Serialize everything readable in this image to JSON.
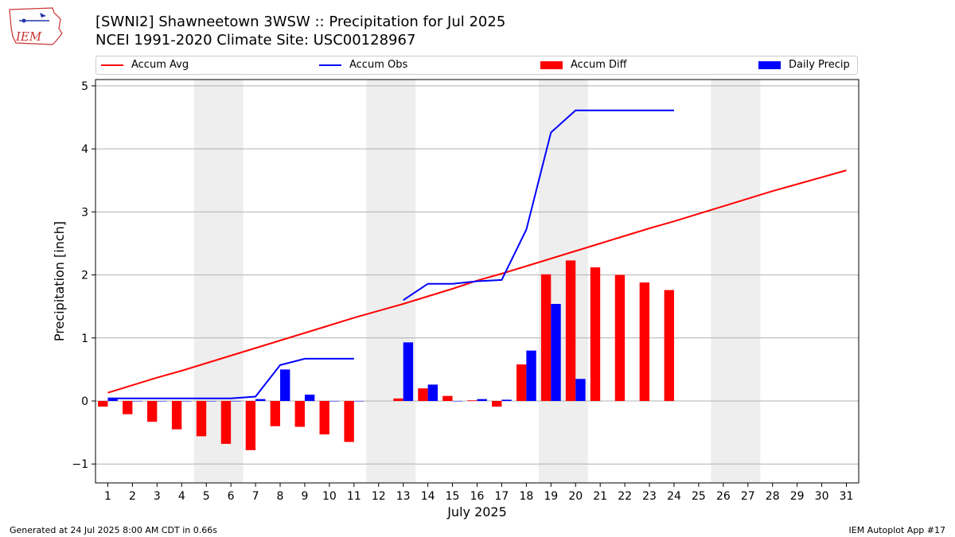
{
  "header": {
    "title_line1": "[SWNI2] Shawneetown 3WSW :: Precipitation for Jul 2025",
    "title_line2": "NCEI 1991-2020 Climate Site: USC00128967",
    "logo_text": "IEM"
  },
  "footer": {
    "left": "Generated at 24 Jul 2025 8:00 AM CDT in 0.66s",
    "right": "IEM Autoplot App #17"
  },
  "colors": {
    "avg": "#ff0000",
    "obs": "#0000ff",
    "diff": "#ff0000",
    "daily": "#0000ff",
    "weekend": "#eeeeee",
    "grid": "#b0b0b0"
  },
  "chart_data": {
    "type": "bar",
    "title": "[SWNI2] Shawneetown 3WSW :: Precipitation for Jul 2025",
    "subtitle": "NCEI 1991-2020 Climate Site: USC00128967",
    "xlabel": "July 2025",
    "ylabel": "Precipitation [inch]",
    "ylim": [
      -1.3,
      5.1
    ],
    "yticks": [
      -1,
      0,
      1,
      2,
      3,
      4,
      5
    ],
    "ytick_labels": [
      "−1",
      "0",
      "1",
      "2",
      "3",
      "4",
      "5"
    ],
    "days": [
      1,
      2,
      3,
      4,
      5,
      6,
      7,
      8,
      9,
      10,
      11,
      12,
      13,
      14,
      15,
      16,
      17,
      18,
      19,
      20,
      21,
      22,
      23,
      24,
      25,
      26,
      27,
      28,
      29,
      30,
      31
    ],
    "day_labels": [
      "1",
      "2",
      "3",
      "4",
      "5",
      "6",
      "7",
      "8",
      "9",
      "10",
      "11",
      "12",
      "13",
      "14",
      "15",
      "16",
      "17",
      "18",
      "19",
      "20",
      "21",
      "22",
      "23",
      "24",
      "25",
      "26",
      "27",
      "28",
      "29",
      "30",
      "31"
    ],
    "weekend_spans": [
      [
        5,
        6
      ],
      [
        12,
        13
      ],
      [
        19,
        20
      ],
      [
        26,
        27
      ]
    ],
    "grid": true,
    "legend_position": "top",
    "legend": [
      {
        "name": "Accum Avg",
        "kind": "line",
        "color": "#ff0000"
      },
      {
        "name": "Accum Obs",
        "kind": "line",
        "color": "#0000ff"
      },
      {
        "name": "Accum Diff",
        "kind": "bar",
        "color": "#ff0000"
      },
      {
        "name": "Daily Precip",
        "kind": "bar",
        "color": "#0000ff"
      }
    ],
    "series": [
      {
        "name": "Accum Avg",
        "type": "line",
        "values": [
          0.13,
          0.25,
          0.37,
          0.48,
          0.6,
          0.72,
          0.84,
          0.96,
          1.08,
          1.2,
          1.32,
          1.43,
          1.54,
          1.66,
          1.78,
          1.91,
          2.02,
          2.14,
          2.26,
          2.38,
          2.5,
          2.62,
          2.74,
          2.85,
          2.97,
          3.09,
          3.21,
          3.33,
          3.44,
          3.55,
          3.66
        ]
      },
      {
        "name": "Accum Obs",
        "type": "line",
        "values": [
          0.04,
          0.04,
          0.04,
          0.04,
          0.04,
          0.04,
          0.07,
          0.57,
          0.67,
          0.67,
          0.67,
          null,
          1.6,
          1.86,
          1.86,
          1.9,
          1.92,
          2.72,
          4.26,
          4.61,
          4.61,
          4.61,
          4.61,
          4.61,
          null,
          null,
          null,
          null,
          null,
          null,
          null
        ]
      },
      {
        "name": "Accum Diff",
        "type": "bar",
        "values": [
          -0.09,
          -0.21,
          -0.33,
          -0.45,
          -0.56,
          -0.68,
          -0.78,
          -0.4,
          -0.41,
          -0.53,
          -0.65,
          null,
          0.04,
          0.2,
          0.08,
          0.01,
          -0.09,
          0.58,
          2.01,
          2.23,
          2.12,
          2.0,
          1.88,
          1.76,
          null,
          null,
          null,
          null,
          null,
          null,
          null
        ]
      },
      {
        "name": "Daily Precip",
        "type": "bar",
        "values": [
          0.04,
          0.0,
          0.0,
          0.0,
          0.0,
          0.0,
          0.03,
          0.5,
          0.1,
          0.0,
          0.0,
          null,
          0.93,
          0.26,
          0.0,
          0.03,
          0.02,
          0.8,
          1.54,
          0.35,
          null,
          null,
          null,
          null,
          null,
          null,
          null,
          null,
          null,
          null,
          null
        ]
      }
    ]
  }
}
